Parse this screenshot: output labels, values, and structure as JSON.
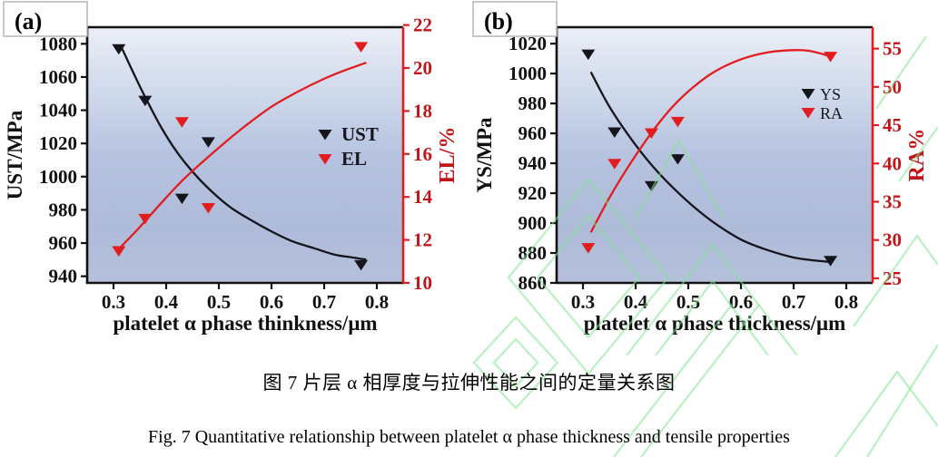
{
  "figure_title": "Fig. 7",
  "captions": {
    "chinese": "图 7 片层 α 相厚度与拉伸性能之间的定量关系图",
    "english": "Fig. 7 Quantitative relationship between platelet α phase thickness and tensile properties"
  },
  "colors": {
    "black_series": "#15151b",
    "red_series": "#e21d20",
    "red_axis_text": "#c0161a",
    "black_axis_text": "#111111",
    "legend_text": "#16161e",
    "watermark_green": "#7fe58c",
    "panel_tag_border": "#b5b5b5",
    "plot_gradient_stops": [
      "#ebeef6",
      "#d0daec",
      "#b6c3e0",
      "#aebbd9",
      "#b5c1db"
    ]
  },
  "chart_data": [
    {
      "type": "scatter",
      "panel_label": "(a)",
      "grid": false,
      "legend_position": "middle-right",
      "x_axis": {
        "label": "platelet α phase thinkness/μm",
        "ticks": [
          0.3,
          0.4,
          0.5,
          0.6,
          0.7,
          0.8
        ],
        "range": [
          0.25,
          0.85
        ]
      },
      "left_axis": {
        "label": "UST/MPa",
        "ticks": [
          940,
          960,
          980,
          1000,
          1020,
          1040,
          1060,
          1080
        ],
        "range": [
          936,
          1090
        ]
      },
      "right_axis": {
        "label": "EL/%",
        "ticks": [
          10,
          12,
          14,
          16,
          18,
          20,
          22
        ],
        "range": [
          10,
          21.9
        ]
      },
      "series": [
        {
          "name": "UST",
          "axis": "left",
          "color_key": "black_series",
          "marker": "triangle-down",
          "points": [
            [
              0.31,
              1077
            ],
            [
              0.36,
              1046
            ],
            [
              0.43,
              987
            ],
            [
              0.48,
              1021
            ],
            [
              0.77,
              947
            ]
          ],
          "trend": [
            [
              0.315,
              1078
            ],
            [
              0.34,
              1061
            ],
            [
              0.36,
              1048
            ],
            [
              0.39,
              1030
            ],
            [
              0.42,
              1015
            ],
            [
              0.45,
              1003
            ],
            [
              0.48,
              993
            ],
            [
              0.52,
              982
            ],
            [
              0.56,
              974
            ],
            [
              0.6,
              967
            ],
            [
              0.64,
              961
            ],
            [
              0.68,
              957
            ],
            [
              0.72,
              953
            ],
            [
              0.75,
              951.5
            ],
            [
              0.78,
              950
            ]
          ]
        },
        {
          "name": "EL",
          "axis": "right",
          "color_key": "red_series",
          "marker": "triangle-down",
          "points": [
            [
              0.31,
              11.5
            ],
            [
              0.36,
              13.0
            ],
            [
              0.43,
              17.5
            ],
            [
              0.48,
              13.5
            ],
            [
              0.77,
              21.0
            ]
          ],
          "trend": [
            [
              0.315,
              11.7
            ],
            [
              0.35,
              12.6
            ],
            [
              0.39,
              13.7
            ],
            [
              0.43,
              14.75
            ],
            [
              0.47,
              15.65
            ],
            [
              0.51,
              16.5
            ],
            [
              0.55,
              17.3
            ],
            [
              0.6,
              18.2
            ],
            [
              0.65,
              18.9
            ],
            [
              0.7,
              19.5
            ],
            [
              0.74,
              19.9
            ],
            [
              0.78,
              20.25
            ]
          ]
        }
      ]
    },
    {
      "type": "scatter",
      "panel_label": "(b)",
      "grid": false,
      "legend_position": "middle-right",
      "x_axis": {
        "label": "platelet α phase thickness/μm",
        "ticks": [
          0.3,
          0.4,
          0.5,
          0.6,
          0.7,
          0.8
        ],
        "range": [
          0.25,
          0.85
        ]
      },
      "left_axis": {
        "label": "YS/MPa",
        "ticks": [
          860,
          880,
          900,
          920,
          940,
          960,
          980,
          1000,
          1020
        ],
        "range": [
          860,
          1031
        ]
      },
      "right_axis": {
        "label": "RA%",
        "ticks": [
          25,
          30,
          35,
          40,
          45,
          50,
          55
        ],
        "range": [
          24.4,
          57.8
        ]
      },
      "series": [
        {
          "name": "YS",
          "axis": "left",
          "color_key": "black_series",
          "marker": "triangle-down",
          "points": [
            [
              0.31,
              1013
            ],
            [
              0.36,
              961
            ],
            [
              0.43,
              925
            ],
            [
              0.48,
              943
            ],
            [
              0.77,
              875
            ]
          ],
          "trend": [
            [
              0.315,
              1001
            ],
            [
              0.35,
              978
            ],
            [
              0.39,
              957
            ],
            [
              0.43,
              939
            ],
            [
              0.47,
              924
            ],
            [
              0.51,
              911
            ],
            [
              0.55,
              900
            ],
            [
              0.6,
              889
            ],
            [
              0.65,
              882
            ],
            [
              0.7,
              877
            ],
            [
              0.74,
              875
            ],
            [
              0.77,
              874
            ]
          ]
        },
        {
          "name": "RA",
          "axis": "right",
          "color_key": "red_series",
          "marker": "triangle-down",
          "points": [
            [
              0.31,
              29
            ],
            [
              0.36,
              40
            ],
            [
              0.43,
              44
            ],
            [
              0.48,
              45.5
            ],
            [
              0.77,
              54
            ]
          ],
          "trend": [
            [
              0.315,
              31
            ],
            [
              0.35,
              35.5
            ],
            [
              0.39,
              40
            ],
            [
              0.43,
              44
            ],
            [
              0.47,
              47.4
            ],
            [
              0.51,
              50
            ],
            [
              0.55,
              52
            ],
            [
              0.6,
              53.6
            ],
            [
              0.65,
              54.5
            ],
            [
              0.7,
              54.8
            ],
            [
              0.73,
              54.7
            ],
            [
              0.765,
              54.1
            ]
          ]
        }
      ]
    }
  ]
}
